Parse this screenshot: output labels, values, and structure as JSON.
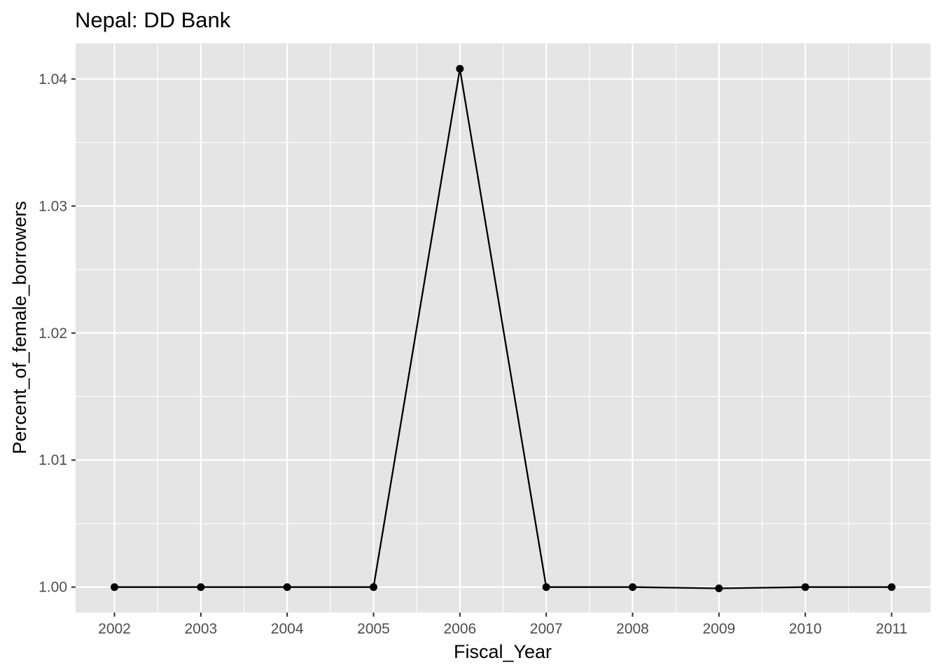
{
  "chart_data": {
    "type": "line",
    "title": "Nepal:  DD Bank",
    "xlabel": "Fiscal_Year",
    "ylabel": "Percent_of_female_borrowers",
    "x": [
      2002,
      2003,
      2004,
      2005,
      2006,
      2007,
      2008,
      2009,
      2010,
      2011
    ],
    "series": [
      {
        "values": [
          1.0,
          1.0,
          1.0,
          1.0,
          1.0408,
          1.0,
          1.0,
          0.9999,
          1.0,
          1.0
        ]
      }
    ],
    "xlim": [
      2001.55,
      2011.45
    ],
    "ylim": [
      0.998,
      1.0428
    ],
    "x_ticks": [
      2002,
      2003,
      2004,
      2005,
      2006,
      2007,
      2008,
      2009,
      2010,
      2011
    ],
    "x_tick_labels": [
      "2002",
      "2003",
      "2004",
      "2005",
      "2006",
      "2007",
      "2008",
      "2009",
      "2010",
      "2011"
    ],
    "y_ticks": [
      1.0,
      1.01,
      1.02,
      1.03,
      1.04
    ],
    "y_tick_labels": [
      "1.00",
      "1.01",
      "1.02",
      "1.03",
      "1.04"
    ],
    "grid": true,
    "legend": "none",
    "colors": {
      "panel_background": "#e5e5e5",
      "grid": "#ffffff",
      "line": "#000000",
      "point": "#000000",
      "tick": "#333333",
      "tick_label": "#4d4d4d"
    }
  }
}
